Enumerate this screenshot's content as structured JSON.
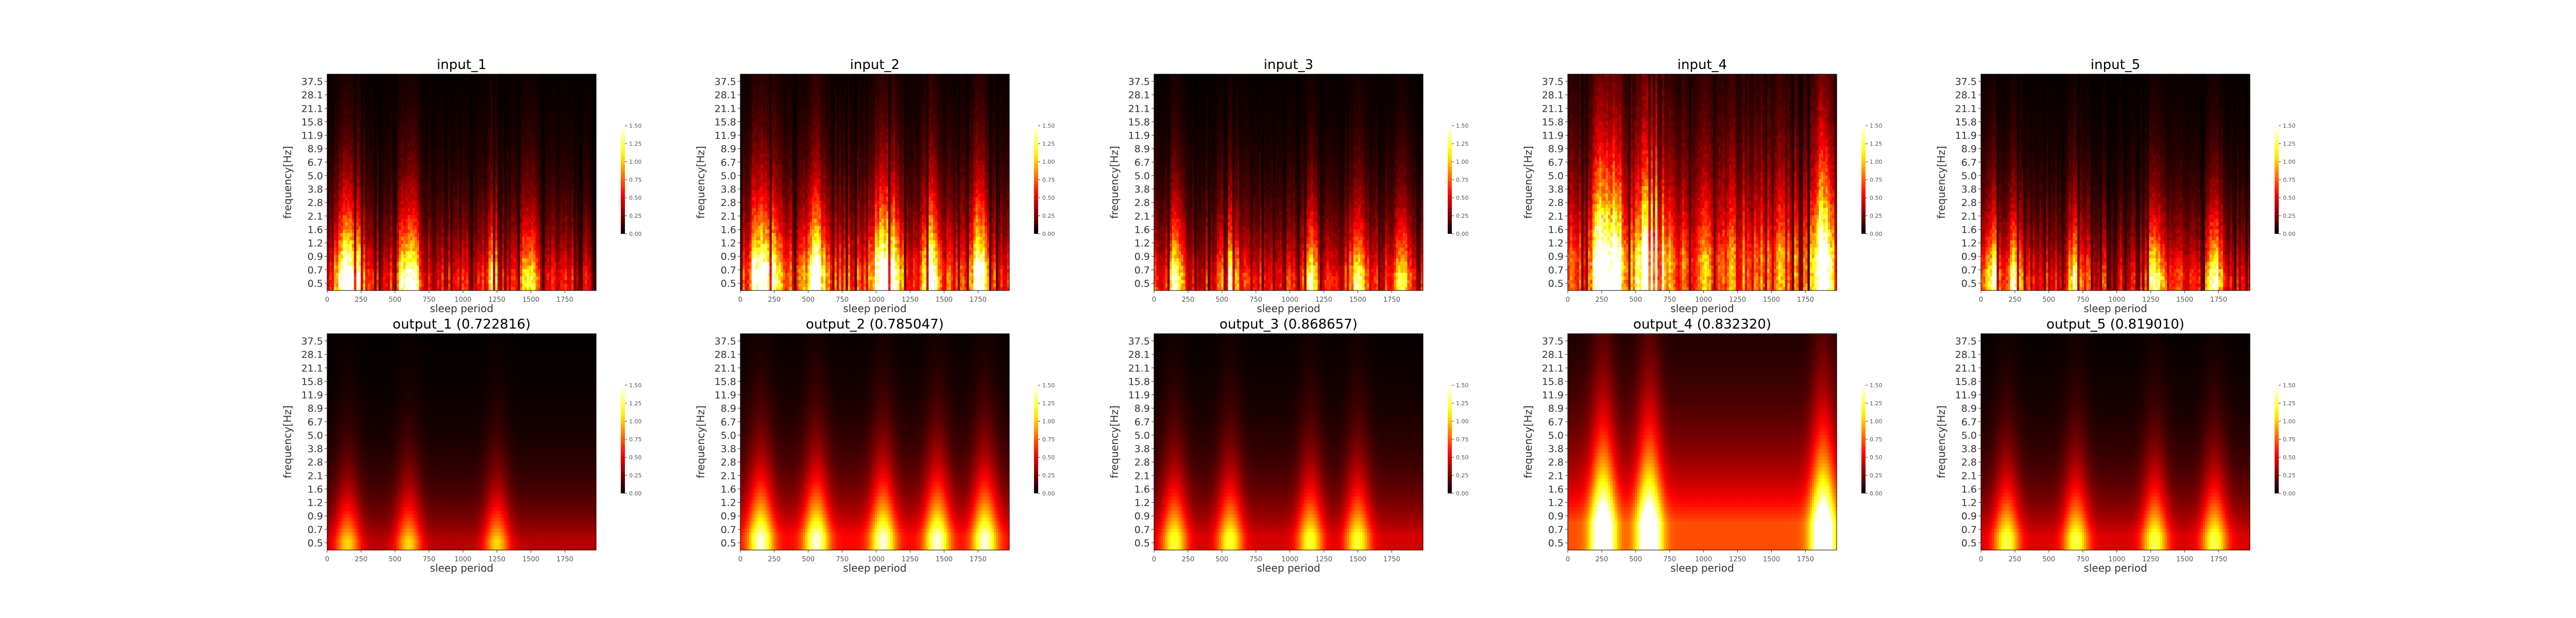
{
  "figure": {
    "ylabel": "frequency[Hz]",
    "xlabel": "sleep period"
  },
  "chart_data": {
    "type": "heatmap",
    "colormap": "hot",
    "layout": "2 rows x 5 columns",
    "x_ticks": [
      0,
      250,
      500,
      750,
      1000,
      1250,
      1500,
      1750
    ],
    "x_range": [
      0,
      1980
    ],
    "y_ticks": [
      "0.5",
      "0.7",
      "0.9",
      "1.2",
      "1.6",
      "2.1",
      "2.8",
      "3.8",
      "5.0",
      "6.7",
      "8.9",
      "11.9",
      "15.8",
      "21.1",
      "28.1",
      "37.5"
    ],
    "colorbar": {
      "range": [
        0.0,
        1.5
      ],
      "ticks": [
        "0.00",
        "0.25",
        "0.50",
        "0.75",
        "1.00",
        "1.25",
        "1.50"
      ]
    },
    "panels": [
      {
        "title": "input_1",
        "peak_hz_band": "0.5-1.2",
        "intensity": 0.62,
        "bursts": [
          110,
          160,
          220,
          560,
          640,
          1240,
          1480
        ]
      },
      {
        "title": "input_2",
        "peak_hz_band": "0.5-1.6",
        "intensity": 0.82,
        "bursts": [
          130,
          240,
          560,
          1030,
          1120,
          1410,
          1760
        ]
      },
      {
        "title": "input_3",
        "peak_hz_band": "0.5-1.2",
        "intensity": 0.66,
        "bursts": [
          150,
          560,
          1150,
          1500,
          1820
        ]
      },
      {
        "title": "input_4",
        "peak_hz_band": "0.5-3.8",
        "intensity": 0.95,
        "bursts": [
          240,
          350,
          580,
          660,
          1880
        ]
      },
      {
        "title": "input_5",
        "peak_hz_band": "0.5-1.2",
        "intensity": 0.68,
        "bursts": [
          90,
          260,
          700,
          1280,
          1720
        ]
      },
      {
        "title": "output_1 (0.722816)",
        "peak_hz_band": "0.5-0.9",
        "intensity": 0.5,
        "bursts": [
          150,
          600,
          1250
        ]
      },
      {
        "title": "output_2 (0.785047)",
        "peak_hz_band": "0.5-1.2",
        "intensity": 0.7,
        "bursts": [
          150,
          560,
          1050,
          1450,
          1800
        ]
      },
      {
        "title": "output_3 (0.868657)",
        "peak_hz_band": "0.5-1.2",
        "intensity": 0.58,
        "bursts": [
          150,
          560,
          1150,
          1500
        ]
      },
      {
        "title": "output_4 (0.832320)",
        "peak_hz_band": "0.5-2.8",
        "intensity": 0.92,
        "bursts": [
          260,
          600,
          1880
        ]
      },
      {
        "title": "output_5 (0.819010)",
        "peak_hz_band": "0.5-1.2",
        "intensity": 0.6,
        "bursts": [
          190,
          700,
          1280,
          1720
        ]
      }
    ]
  }
}
